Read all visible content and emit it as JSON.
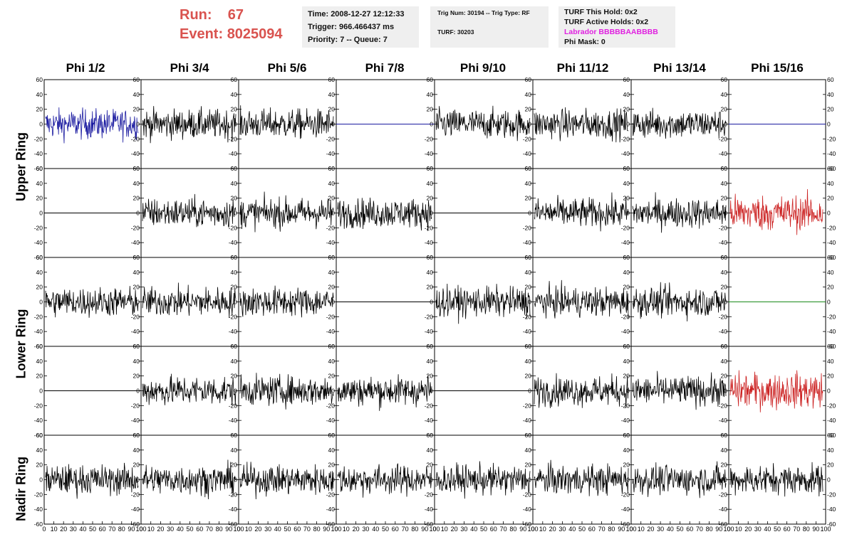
{
  "header": {
    "run_label": "Run:",
    "run_value": "67",
    "event_label": "Event:",
    "event_value": "8025094"
  },
  "time_box": {
    "time": "Time: 2008-12-27 12:12:33",
    "trigger": "Trigger: 966.466437 ms",
    "priority": "Priority: 7 -- Queue: 7"
  },
  "trig_box": {
    "trig": "Trig Num: 30194 -- Trig Type: RF",
    "turf": "TURF: 30203"
  },
  "turf_box": {
    "hold": "TURF This Hold: 0x2",
    "active": "TURF Active Holds: 0x2",
    "labrador": "Labrador BBBBBAABBBB",
    "phimask": "Phi Mask: 0"
  },
  "columns": [
    "Phi 1/2",
    "Phi 3/4",
    "Phi 5/6",
    "Phi 7/8",
    "Phi 9/10",
    "Phi 11/12",
    "Phi 13/14",
    "Phi 15/16"
  ],
  "ring_labels": {
    "upper": "Upper Ring",
    "lower": "Lower Ring",
    "nadir": "Nadir Ring"
  },
  "chart_data": {
    "type": "line",
    "ylim": [
      -60,
      60
    ],
    "xlim": [
      0,
      100
    ],
    "y_ticks": [
      "60",
      "40",
      "20",
      "0",
      "-20",
      "-40",
      "-60"
    ],
    "x_ticks": [
      "0",
      "10",
      "20",
      "30",
      "40",
      "50",
      "60",
      "70",
      "80",
      "90",
      "100"
    ],
    "colors": {
      "black": "#000000",
      "blue": "#1a1aa0",
      "red": "#cc2222",
      "green": "#1a8a1a"
    },
    "panels": [
      [
        "blue-noise",
        "noise",
        "noise",
        "blue-flat",
        "noise",
        "noise",
        "noise",
        "blue-flat"
      ],
      [
        "flat",
        "noise",
        "noise",
        "noise",
        "flat",
        "noise",
        "noise",
        "red-noise"
      ],
      [
        "noise",
        "noise",
        "noise",
        "flat",
        "noise",
        "noise",
        "noise",
        "green-flat"
      ],
      [
        "flat",
        "noise",
        "noise",
        "noise",
        "flat",
        "noise",
        "noise",
        "red-noise"
      ],
      [
        "noise",
        "noise",
        "noise",
        "noise",
        "noise",
        "noise",
        "noise",
        "noise"
      ]
    ]
  }
}
